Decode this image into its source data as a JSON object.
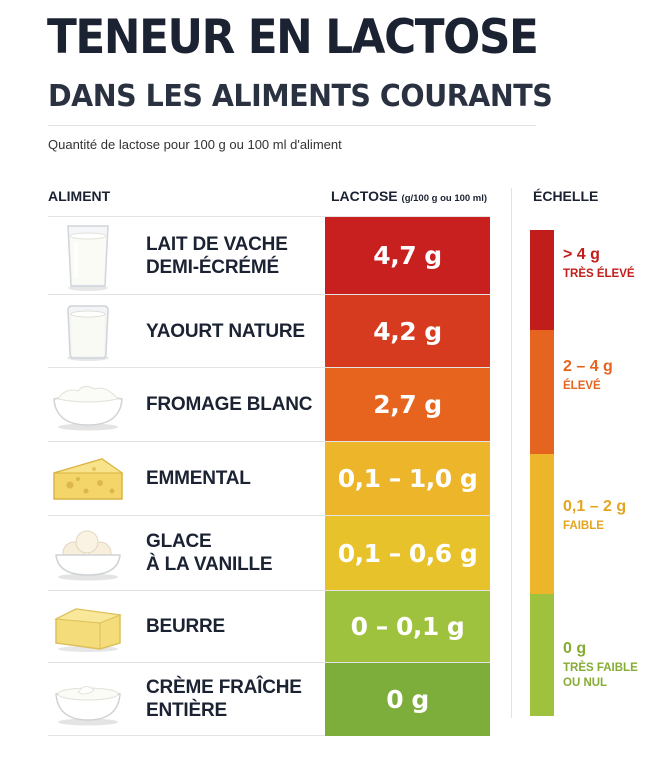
{
  "title": "TENEUR EN LACTOSE",
  "subtitle": "DANS LES ALIMENTS COURANTS",
  "description": "Quantité de lactose pour 100 g ou 100 ml d'aliment",
  "headers": {
    "aliment": "ALIMENT",
    "lactose": "LACTOSE",
    "lactose_unit": "(g/100 g ou 100 ml)",
    "echelle": "ÉCHELLE"
  },
  "chart_data": {
    "type": "table",
    "title": "TENEUR EN LACTOSE",
    "subtitle": "DANS LES ALIMENTS COURANTS",
    "columns": [
      "ALIMENT",
      "LACTOSE (g/100 g ou 100 ml)"
    ],
    "rows": [
      {
        "aliment_lines": [
          "LAIT DE VACHE",
          "DEMI-ÉCRÉMÉ"
        ],
        "value": "4,7 g",
        "lactose_min": 4.7,
        "lactose_max": 4.7,
        "color": "#c8201f"
      },
      {
        "aliment_lines": [
          "YAOURT NATURE"
        ],
        "value": "4,2 g",
        "lactose_min": 4.2,
        "lactose_max": 4.2,
        "color": "#d63b20"
      },
      {
        "aliment_lines": [
          "FROMAGE BLANC"
        ],
        "value": "2,7 g",
        "lactose_min": 2.7,
        "lactose_max": 2.7,
        "color": "#e7641f"
      },
      {
        "aliment_lines": [
          "EMMENTAL"
        ],
        "value": "0,1 – 1,0 g",
        "lactose_min": 0.1,
        "lactose_max": 1.0,
        "color": "#ecb52a"
      },
      {
        "aliment_lines": [
          "GLACE",
          "À LA VANILLE"
        ],
        "value": "0,1 – 0,6 g",
        "lactose_min": 0.1,
        "lactose_max": 0.6,
        "color": "#e8c22a"
      },
      {
        "aliment_lines": [
          "BEURRE"
        ],
        "value": "0 – 0,1 g",
        "lactose_min": 0,
        "lactose_max": 0.1,
        "color": "#9ec23d"
      },
      {
        "aliment_lines": [
          "CRÈME FRAÎCHE",
          "ENTIÈRE"
        ],
        "value": "0 g",
        "lactose_min": 0,
        "lactose_max": 0,
        "color": "#7dad3a"
      }
    ],
    "scale": [
      {
        "value": "> 4 g",
        "label": "TRÈS ÉLEVÉ",
        "color": "#c11d1a",
        "text_color": "#c11d1a"
      },
      {
        "value": "2 – 4 g",
        "label": "ÉLEVÉ",
        "color": "#e5641f",
        "text_color": "#e5641f"
      },
      {
        "value": "0,1 – 2 g",
        "label": "FAIBLE",
        "color": "#ecb52a",
        "text_color": "#e3a520"
      },
      {
        "value": "0 g",
        "label_lines": [
          "TRÈS FAIBLE",
          "OU NUL"
        ],
        "color": "#9ec23d",
        "text_color": "#86ac33"
      }
    ]
  },
  "icons": [
    "milk-glass-icon",
    "yogurt-jar-icon",
    "fromage-blanc-bowl-icon",
    "emmental-cheese-icon",
    "ice-cream-bowl-icon",
    "butter-block-icon",
    "cream-bowl-icon"
  ]
}
